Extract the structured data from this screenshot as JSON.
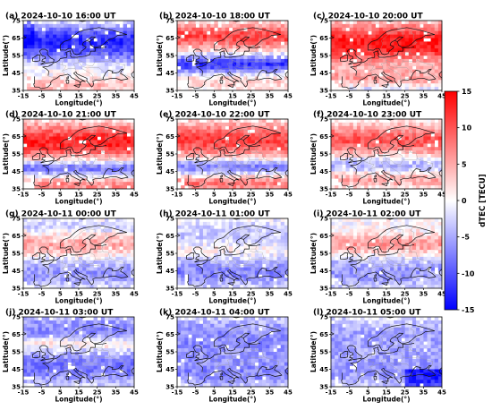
{
  "figure": {
    "x_label": "Longitude(°)",
    "y_label": "Latitude(°)",
    "x_ticks": [
      -15,
      -5,
      5,
      15,
      25,
      35,
      45
    ],
    "y_ticks": [
      35,
      45,
      55,
      65,
      75
    ],
    "x_range": [
      -15,
      45
    ],
    "y_range": [
      35,
      75
    ]
  },
  "colorbar": {
    "label": "dTEC [TECU]",
    "range": [
      -15,
      15
    ],
    "ticks": [
      15,
      10,
      5,
      0,
      -5,
      -10,
      -15
    ],
    "colormap": "bwr",
    "color_low": "#0000ff",
    "color_mid": "#ffffff",
    "color_high": "#ff0000"
  },
  "panels": [
    {
      "title": "(a) 2024-10-10 16:00 UT",
      "pattern": "north negative, south slightly positive"
    },
    {
      "title": "(b) 2024-10-10 18:00 UT",
      "pattern": "north positive, mid-latitude negative band"
    },
    {
      "title": "(c) 2024-10-10 20:00 UT",
      "pattern": "strong positive north, weaker positive south"
    },
    {
      "title": "(d) 2024-10-10 21:00 UT",
      "pattern": "strong positive north, blue band near 45°"
    },
    {
      "title": "(e) 2024-10-10 22:00 UT",
      "pattern": "positive north, blue band, positive south"
    },
    {
      "title": "(f) 2024-10-10 23:00 UT",
      "pattern": "positive north, mixed south"
    },
    {
      "title": "(g) 2024-10-11 00:00 UT",
      "pattern": "weak positive north, negative south"
    },
    {
      "title": "(h) 2024-10-11 01:00 UT",
      "pattern": "mostly weak negative"
    },
    {
      "title": "(i) 2024-10-11 02:00 UT",
      "pattern": "weak positive north, negative south"
    },
    {
      "title": "(j) 2024-10-11 03:00 UT",
      "pattern": "negative with weak positive band near 60°"
    },
    {
      "title": "(k) 2024-10-11 04:00 UT",
      "pattern": "broadly negative"
    },
    {
      "title": "(l) 2024-10-11 05:00 UT",
      "pattern": "negative, strongest in south-east"
    }
  ]
}
